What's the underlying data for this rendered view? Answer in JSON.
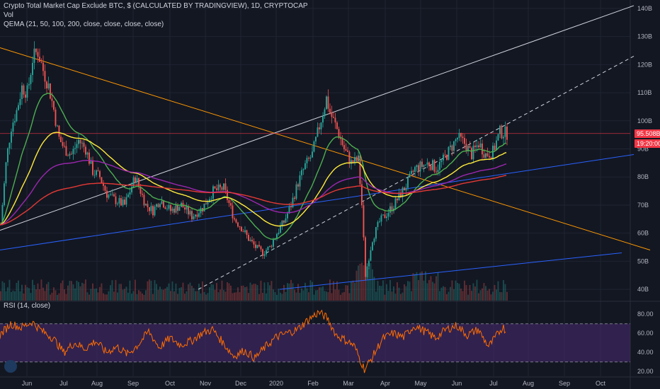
{
  "header": {
    "title": "Crypto Total Market Cap Exclude BTC, $ (CALCULATED BY TRADINGVIEW), 1D, CRYPTOCAP",
    "vol_label": "Vol",
    "qema_label": "QEMA (21, 50, 100, 200, close, close, close, close)"
  },
  "rsi": {
    "label": "RSI (14, close)",
    "ticks": [
      "80.00",
      "60.00",
      "40.00",
      "20.00"
    ]
  },
  "price_badge": {
    "value": "95.508B",
    "countdown": "19:20:00",
    "color": "#f23645"
  },
  "colors": {
    "up": "#26a69a",
    "down": "#ef5350",
    "ema21": "#4caf50",
    "ema50": "#ffeb3b",
    "ema100": "#9c27b0",
    "ema200": "#e53935",
    "rsi_line": "#ff6d00",
    "rsi_band": "#4a2a73",
    "trend_orange": "#ff9800",
    "trend_blue": "#2962ff",
    "trend_white": "#d1d4dc"
  },
  "chart_data": {
    "type": "candlestick",
    "y_ticks": [
      "140B",
      "130B",
      "120B",
      "110B",
      "100B",
      "90B",
      "80B",
      "70B",
      "60B",
      "50B",
      "40B"
    ],
    "x_ticks": [
      "Jun",
      "Jul",
      "Aug",
      "Sep",
      "Oct",
      "Nov",
      "Dec",
      "2020",
      "Feb",
      "Mar",
      "Apr",
      "May",
      "Jun",
      "Jul",
      "Aug",
      "Sep",
      "Oct"
    ],
    "ylim": [
      36,
      143
    ],
    "rsi_ylim": [
      15,
      92
    ],
    "rsi_bands": [
      30,
      70
    ],
    "price_line": 95.5,
    "price_anchors": [
      [
        0,
        63
      ],
      [
        8,
        86
      ],
      [
        15,
        98
      ],
      [
        22,
        103
      ],
      [
        30,
        112
      ],
      [
        38,
        110
      ],
      [
        45,
        122
      ],
      [
        52,
        125
      ],
      [
        60,
        118
      ],
      [
        68,
        112
      ],
      [
        75,
        104
      ],
      [
        82,
        94
      ],
      [
        90,
        90
      ],
      [
        100,
        88
      ],
      [
        110,
        93
      ],
      [
        120,
        90
      ],
      [
        130,
        82
      ],
      [
        140,
        80
      ],
      [
        150,
        74
      ],
      [
        160,
        72
      ],
      [
        175,
        70
      ],
      [
        190,
        80
      ],
      [
        205,
        70
      ],
      [
        215,
        68
      ],
      [
        225,
        72
      ],
      [
        240,
        68
      ],
      [
        255,
        70
      ],
      [
        270,
        66
      ],
      [
        285,
        69
      ],
      [
        300,
        75
      ],
      [
        315,
        76
      ],
      [
        330,
        65
      ],
      [
        340,
        62
      ],
      [
        350,
        58
      ],
      [
        360,
        55
      ],
      [
        370,
        53
      ],
      [
        380,
        55
      ],
      [
        390,
        60
      ],
      [
        400,
        64
      ],
      [
        410,
        70
      ],
      [
        420,
        78
      ],
      [
        430,
        84
      ],
      [
        440,
        88
      ],
      [
        450,
        98
      ],
      [
        460,
        108
      ],
      [
        465,
        103
      ],
      [
        475,
        97
      ],
      [
        485,
        90
      ],
      [
        495,
        85
      ],
      [
        505,
        86
      ],
      [
        510,
        70
      ],
      [
        515,
        45
      ],
      [
        525,
        58
      ],
      [
        535,
        64
      ],
      [
        545,
        67
      ],
      [
        555,
        70
      ],
      [
        565,
        74
      ],
      [
        575,
        78
      ],
      [
        585,
        83
      ],
      [
        595,
        84
      ],
      [
        605,
        85
      ],
      [
        615,
        83
      ],
      [
        625,
        86
      ],
      [
        635,
        90
      ],
      [
        645,
        94
      ],
      [
        655,
        92
      ],
      [
        665,
        88
      ],
      [
        675,
        92
      ],
      [
        685,
        88
      ],
      [
        695,
        89
      ],
      [
        705,
        96
      ],
      [
        715,
        95.5
      ]
    ],
    "rsi_anchors": [
      [
        0,
        58
      ],
      [
        15,
        70
      ],
      [
        30,
        66
      ],
      [
        45,
        72
      ],
      [
        60,
        62
      ],
      [
        75,
        55
      ],
      [
        90,
        40
      ],
      [
        105,
        50
      ],
      [
        120,
        44
      ],
      [
        135,
        52
      ],
      [
        150,
        40
      ],
      [
        165,
        46
      ],
      [
        180,
        38
      ],
      [
        195,
        48
      ],
      [
        210,
        62
      ],
      [
        225,
        45
      ],
      [
        240,
        55
      ],
      [
        255,
        48
      ],
      [
        270,
        52
      ],
      [
        285,
        60
      ],
      [
        300,
        64
      ],
      [
        315,
        50
      ],
      [
        330,
        36
      ],
      [
        345,
        42
      ],
      [
        360,
        34
      ],
      [
        375,
        46
      ],
      [
        390,
        56
      ],
      [
        405,
        60
      ],
      [
        420,
        64
      ],
      [
        435,
        74
      ],
      [
        450,
        82
      ],
      [
        462,
        76
      ],
      [
        475,
        58
      ],
      [
        490,
        52
      ],
      [
        500,
        47
      ],
      [
        510,
        30
      ],
      [
        515,
        22
      ],
      [
        525,
        34
      ],
      [
        540,
        54
      ],
      [
        555,
        60
      ],
      [
        570,
        56
      ],
      [
        585,
        68
      ],
      [
        600,
        62
      ],
      [
        615,
        55
      ],
      [
        630,
        64
      ],
      [
        645,
        68
      ],
      [
        660,
        58
      ],
      [
        675,
        64
      ],
      [
        690,
        46
      ],
      [
        700,
        56
      ],
      [
        710,
        67
      ],
      [
        715,
        62
      ]
    ],
    "trendlines": [
      {
        "color": "trend_orange",
        "dash": false,
        "points": [
          [
            0,
            126
          ],
          [
            918,
            54
          ]
        ]
      },
      {
        "color": "trend_white",
        "dash": false,
        "points": [
          [
            0,
            61
          ],
          [
            895,
            141
          ]
        ]
      },
      {
        "color": "trend_white",
        "dash": true,
        "points": [
          [
            280,
            40
          ],
          [
            895,
            123
          ]
        ]
      },
      {
        "color": "trend_blue",
        "dash": false,
        "points": [
          [
            0,
            54
          ],
          [
            895,
            88
          ]
        ]
      },
      {
        "color": "trend_blue",
        "dash": false,
        "points": [
          [
            395,
            40
          ],
          [
            878,
            53
          ]
        ]
      }
    ]
  }
}
